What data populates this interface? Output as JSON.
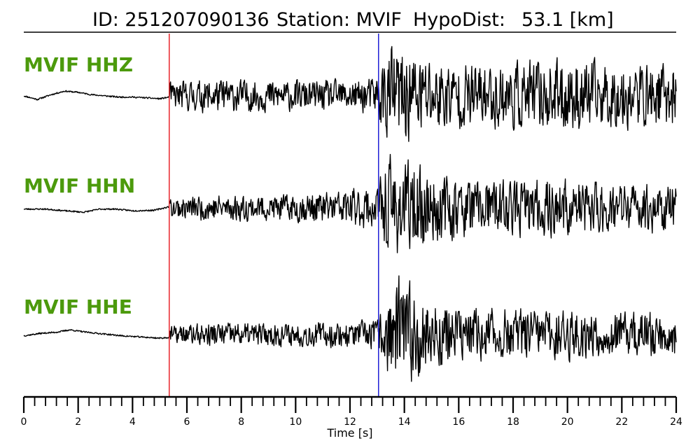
{
  "chart_data": {
    "type": "line",
    "title": {
      "id_label": "ID: 251207090136",
      "station_label": "Station: MVIF",
      "dist_label": "HypoDist:",
      "dist_value": "53.1 [km]"
    },
    "xlabel": "Time [s]",
    "xlim": [
      0,
      24
    ],
    "major_ticks": [
      0,
      2,
      4,
      6,
      8,
      10,
      12,
      14,
      16,
      18,
      20,
      22,
      24
    ],
    "minor_tick_step": 0.4,
    "p_pick_time": 5.35,
    "s_pick_time": 13.05,
    "p_pick_color": "#e8262c",
    "s_pick_color": "#1f1fd6",
    "label_color": "#4c9a0c",
    "trace_color": "#000000",
    "series": [
      {
        "name": "MVIF HHZ",
        "noise_shape": [
          [
            0,
            0.0
          ],
          [
            0.5,
            -0.15
          ],
          [
            1.0,
            0.05
          ],
          [
            1.5,
            0.2
          ],
          [
            2.0,
            0.15
          ],
          [
            2.5,
            0.05
          ],
          [
            3.0,
            0.0
          ],
          [
            3.5,
            -0.05
          ],
          [
            4.0,
            -0.05
          ],
          [
            4.5,
            -0.08
          ],
          [
            5.0,
            -0.12
          ],
          [
            5.35,
            -0.05
          ]
        ],
        "envelope": [
          [
            5.35,
            0.6
          ],
          [
            7.0,
            0.75
          ],
          [
            9.0,
            0.7
          ],
          [
            10.5,
            0.65
          ],
          [
            12.0,
            0.7
          ],
          [
            12.9,
            0.8
          ],
          [
            13.5,
            2.3
          ],
          [
            14.5,
            1.9
          ],
          [
            16.0,
            1.4
          ],
          [
            18.0,
            1.5
          ],
          [
            20.0,
            1.6
          ],
          [
            22.0,
            1.4
          ],
          [
            24.0,
            1.4
          ]
        ],
        "seed": 11
      },
      {
        "name": "MVIF HHN",
        "noise_shape": [
          [
            0,
            -0.05
          ],
          [
            0.8,
            -0.05
          ],
          [
            1.5,
            -0.12
          ],
          [
            2.2,
            -0.18
          ],
          [
            2.8,
            -0.05
          ],
          [
            3.4,
            -0.05
          ],
          [
            4.0,
            -0.12
          ],
          [
            4.8,
            -0.1
          ],
          [
            5.35,
            0.05
          ]
        ],
        "envelope": [
          [
            5.35,
            0.45
          ],
          [
            7.0,
            0.6
          ],
          [
            9.0,
            0.55
          ],
          [
            11.0,
            0.7
          ],
          [
            12.5,
            0.9
          ],
          [
            13.0,
            1.0
          ],
          [
            13.5,
            2.3
          ],
          [
            14.5,
            1.8
          ],
          [
            16.0,
            1.3
          ],
          [
            18.0,
            1.2
          ],
          [
            20.0,
            1.3
          ],
          [
            22.0,
            1.1
          ],
          [
            24.0,
            1.1
          ]
        ],
        "seed": 23
      },
      {
        "name": "MVIF HHE",
        "noise_shape": [
          [
            0,
            -0.05
          ],
          [
            0.6,
            0.05
          ],
          [
            1.2,
            0.1
          ],
          [
            1.7,
            0.2
          ],
          [
            2.3,
            0.1
          ],
          [
            3.0,
            0.02
          ],
          [
            3.6,
            -0.05
          ],
          [
            4.3,
            -0.1
          ],
          [
            5.0,
            -0.15
          ],
          [
            5.35,
            -0.12
          ]
        ],
        "envelope": [
          [
            5.35,
            0.35
          ],
          [
            7.0,
            0.55
          ],
          [
            9.0,
            0.5
          ],
          [
            11.0,
            0.55
          ],
          [
            12.5,
            0.6
          ],
          [
            13.0,
            0.7
          ],
          [
            13.7,
            2.6
          ],
          [
            14.5,
            1.9
          ],
          [
            16.0,
            1.2
          ],
          [
            18.0,
            1.1
          ],
          [
            20.0,
            1.1
          ],
          [
            22.0,
            1.0
          ],
          [
            24.0,
            1.0
          ]
        ],
        "seed": 37
      }
    ]
  }
}
